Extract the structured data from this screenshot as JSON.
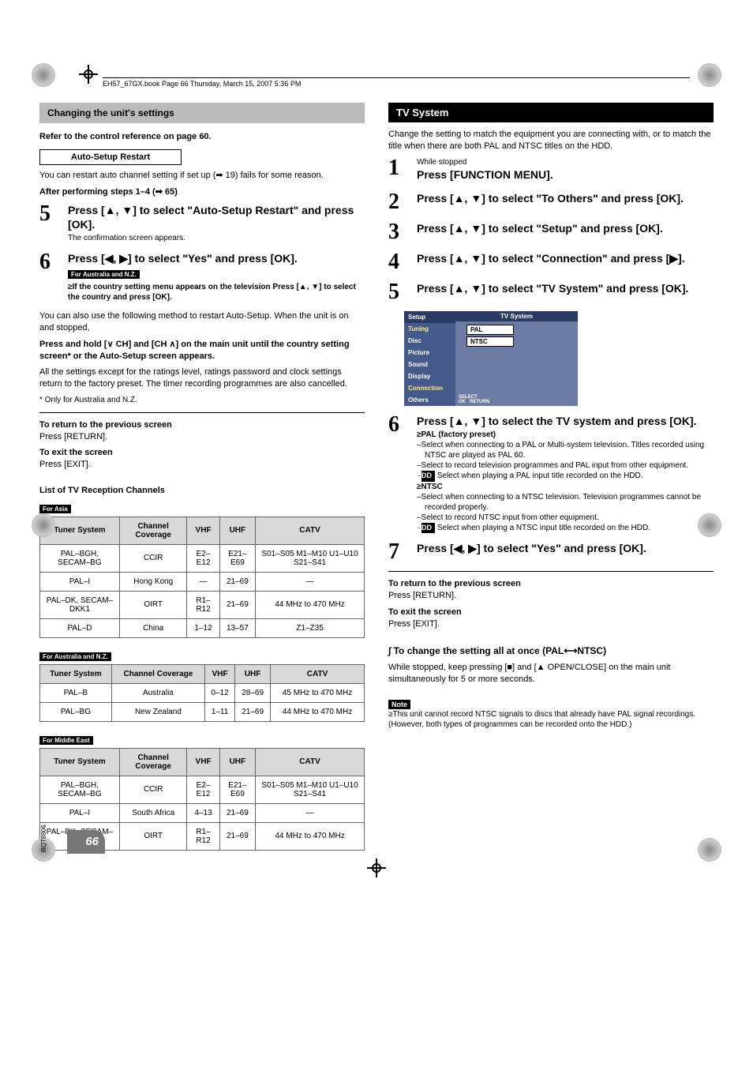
{
  "header_file_info": "EH57_67GX.book  Page 66  Thursday, March 15, 2007  5:36 PM",
  "page_title": "Changing the unit's settings",
  "ref_line": "Refer to the control reference on page 60.",
  "auto_setup_title": "Auto-Setup Restart",
  "auto_setup_intro": "You can restart auto channel setting if set up (➡ 19) fails for some reason.",
  "after_steps": "After performing steps 1–4 (➡ 65)",
  "left_steps": {
    "s5_main": "Press [▲, ▼] to select \"Auto-Setup Restart\" and press [OK].",
    "s5_sub": "The confirmation screen appears.",
    "s6_main": "Press [◀, ▶] to select \"Yes\" and press [OK].",
    "s6_badge": "For Australia and N.Z.",
    "s6_b1": "≥If the country setting menu appears on the television Press [▲, ▼] to select the country and press [OK]."
  },
  "also_restart": "You can also use the following method to restart Auto-Setup. When the unit is on and stopped,",
  "press_hold": "Press and hold [∨ CH] and [CH ∧] on the main unit until the country setting screen* or the Auto-Setup screen appears.",
  "all_settings": "All the settings except for the ratings level, ratings password and clock settings return to the factory preset. The timer recording programmes are also cancelled.",
  "only_aus": "* Only for Australia and N.Z.",
  "return_prev_title": "To return to the previous screen",
  "return_prev_body": "Press [RETURN].",
  "exit_title": "To exit the screen",
  "exit_body": "Press [EXIT].",
  "list_title": "List of TV Reception Channels",
  "region_badges": {
    "asia": "For Asia",
    "aus": "For Australia and N.Z.",
    "me": "For Middle East"
  },
  "table_headers": {
    "tuner": "Tuner System",
    "coverage": "Channel Coverage",
    "vhf": "VHF",
    "uhf": "UHF",
    "catv": "CATV"
  },
  "table_asia": [
    {
      "tuner": "PAL–BGH, SECAM–BG",
      "cov": "CCIR",
      "vhf": "E2–E12",
      "uhf": "E21–E69",
      "catv": "S01–S05 M1–M10 U1–U10 S21–S41"
    },
    {
      "tuner": "PAL–I",
      "cov": "Hong Kong",
      "vhf": "—",
      "uhf": "21–69",
      "catv": "—"
    },
    {
      "tuner": "PAL–DK, SECAM–DKK1",
      "cov": "OIRT",
      "vhf": "R1–R12",
      "uhf": "21–69",
      "catv": "44 MHz to 470 MHz"
    },
    {
      "tuner": "PAL–D",
      "cov": "China",
      "vhf": "1–12",
      "uhf": "13–57",
      "catv": "Z1–Z35"
    }
  ],
  "table_aus": [
    {
      "tuner": "PAL–B",
      "cov": "Australia",
      "vhf": "0–12",
      "uhf": "28–69",
      "catv": "45 MHz to 470 MHz"
    },
    {
      "tuner": "PAL–BG",
      "cov": "New Zealand",
      "vhf": "1–11",
      "uhf": "21–69",
      "catv": "44 MHz to 470 MHz"
    }
  ],
  "table_me": [
    {
      "tuner": "PAL–BGH, SECAM–BG",
      "cov": "CCIR",
      "vhf": "E2–E12",
      "uhf": "E21–E69",
      "catv": "S01–S05 M1–M10 U1–U10 S21–S41"
    },
    {
      "tuner": "PAL–I",
      "cov": "South Africa",
      "vhf": "4–13",
      "uhf": "21–69",
      "catv": "—"
    },
    {
      "tuner": "PAL–DK, SECAM–DKK1",
      "cov": "OIRT",
      "vhf": "R1–R12",
      "uhf": "21–69",
      "catv": "44 MHz to 470 MHz"
    }
  ],
  "tv_system_title": "TV System",
  "tv_system_intro": "Change the setting to match the equipment you are connecting with, or to match the title when there are both PAL and NTSC titles on the HDD.",
  "right_steps": {
    "s1_sub": "While stopped",
    "s1_main": "Press [FUNCTION MENU].",
    "s2_main": "Press [▲, ▼] to select \"To Others\" and press [OK].",
    "s3_main": "Press [▲, ▼] to select \"Setup\" and press [OK].",
    "s4_main": "Press [▲, ▼] to select \"Connection\" and press [▶].",
    "s5_main": "Press [▲, ▼] to select \"TV System\" and press [OK]."
  },
  "setup_menu": {
    "header": "Setup",
    "panel_title": "TV System",
    "items": [
      "Tuning",
      "Disc",
      "Picture",
      "Sound",
      "Display",
      "Connection",
      "Others"
    ],
    "options": [
      "PAL",
      "NTSC"
    ],
    "hint1": "SELECT",
    "hint2": "OK",
    "hint3": "RETURN"
  },
  "right_steps2": {
    "s6_main": "Press [▲, ▼] to select the TV system and press [OK].",
    "s6_pal_title": "≥PAL (factory preset)",
    "s6_pal_1": "–Select when connecting to a PAL or Multi-system television. Titles recorded using NTSC are played as PAL 60.",
    "s6_pal_2": "–Select to record television programmes and PAL input from other equipment.",
    "s6_pal_3_pre": "–",
    "s6_pal_3_badge": "HDD",
    "s6_pal_3": " Select when playing a PAL input title recorded on the HDD.",
    "s6_ntsc_title": "≥NTSC",
    "s6_ntsc_1": "–Select when connecting to a NTSC television. Television programmes cannot be recorded properly.",
    "s6_ntsc_2": "–Select to record NTSC input from other equipment.",
    "s6_ntsc_3_pre": "–",
    "s6_ntsc_3_badge": "HDD",
    "s6_ntsc_3": " Select when playing a NTSC input title recorded on the HDD.",
    "s7_main": "Press [◀, ▶] to select \"Yes\" and press [OK]."
  },
  "change_all_title": "∫ To change the setting all at once (PAL⟷NTSC)",
  "change_all_body": "While stopped, keep pressing [■] and [▲ OPEN/CLOSE] on the main unit simultaneously for 5 or more seconds.",
  "note_badge": "Note",
  "note_body": "≥This unit cannot record NTSC signals to discs that already have PAL signal recordings. (However, both types of programmes can be recorded onto the HDD.)",
  "page_number": "66",
  "rqt": "RQT8906"
}
